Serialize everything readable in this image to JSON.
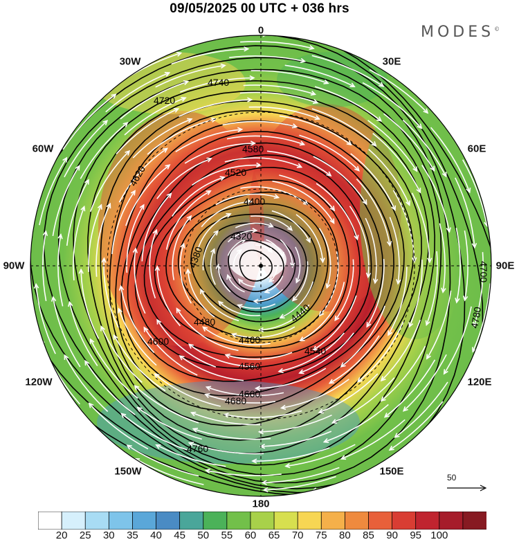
{
  "title": "09/05/2025  00 UTC  + 036 hrs",
  "logo": "MODES",
  "logo_mark": "©",
  "longitude_labels": {
    "lon_0": "0",
    "lon_30e": "30E",
    "lon_60e": "60E",
    "lon_90e": "90E",
    "lon_120e": "120E",
    "lon_150e": "150E",
    "lon_180": "180",
    "lon_150w": "150W",
    "lon_120w": "120W",
    "lon_90w": "90W",
    "lon_60w": "60W",
    "lon_30w": "30W"
  },
  "contour_labels": [
    "4320",
    "4380",
    "4400",
    "4440",
    "4460",
    "4480",
    "4520",
    "4540",
    "4560",
    "4580",
    "4600",
    "4620",
    "4660",
    "4680",
    "4700",
    "4720",
    "4740",
    "4760",
    "4780"
  ],
  "wind_reference": {
    "label": "50"
  },
  "colorbar": {
    "colors": [
      "#ffffff",
      "#d6f0fc",
      "#a8dcf4",
      "#7ec4ea",
      "#5aa7d9",
      "#4a8bc4",
      "#4aa69a",
      "#4bb259",
      "#72c04a",
      "#a8d14a",
      "#d7df4f",
      "#f7d653",
      "#f5b04a",
      "#ef8a3e",
      "#e8603a",
      "#d93d33",
      "#c0242f",
      "#a61c2a",
      "#871a22"
    ],
    "ticks": [
      "20",
      "25",
      "30",
      "35",
      "40",
      "45",
      "50",
      "55",
      "60",
      "65",
      "70",
      "75",
      "80",
      "85",
      "90",
      "95",
      "100"
    ]
  },
  "palette": {
    "contour": "#000000",
    "streamline": "#ffffff"
  }
}
